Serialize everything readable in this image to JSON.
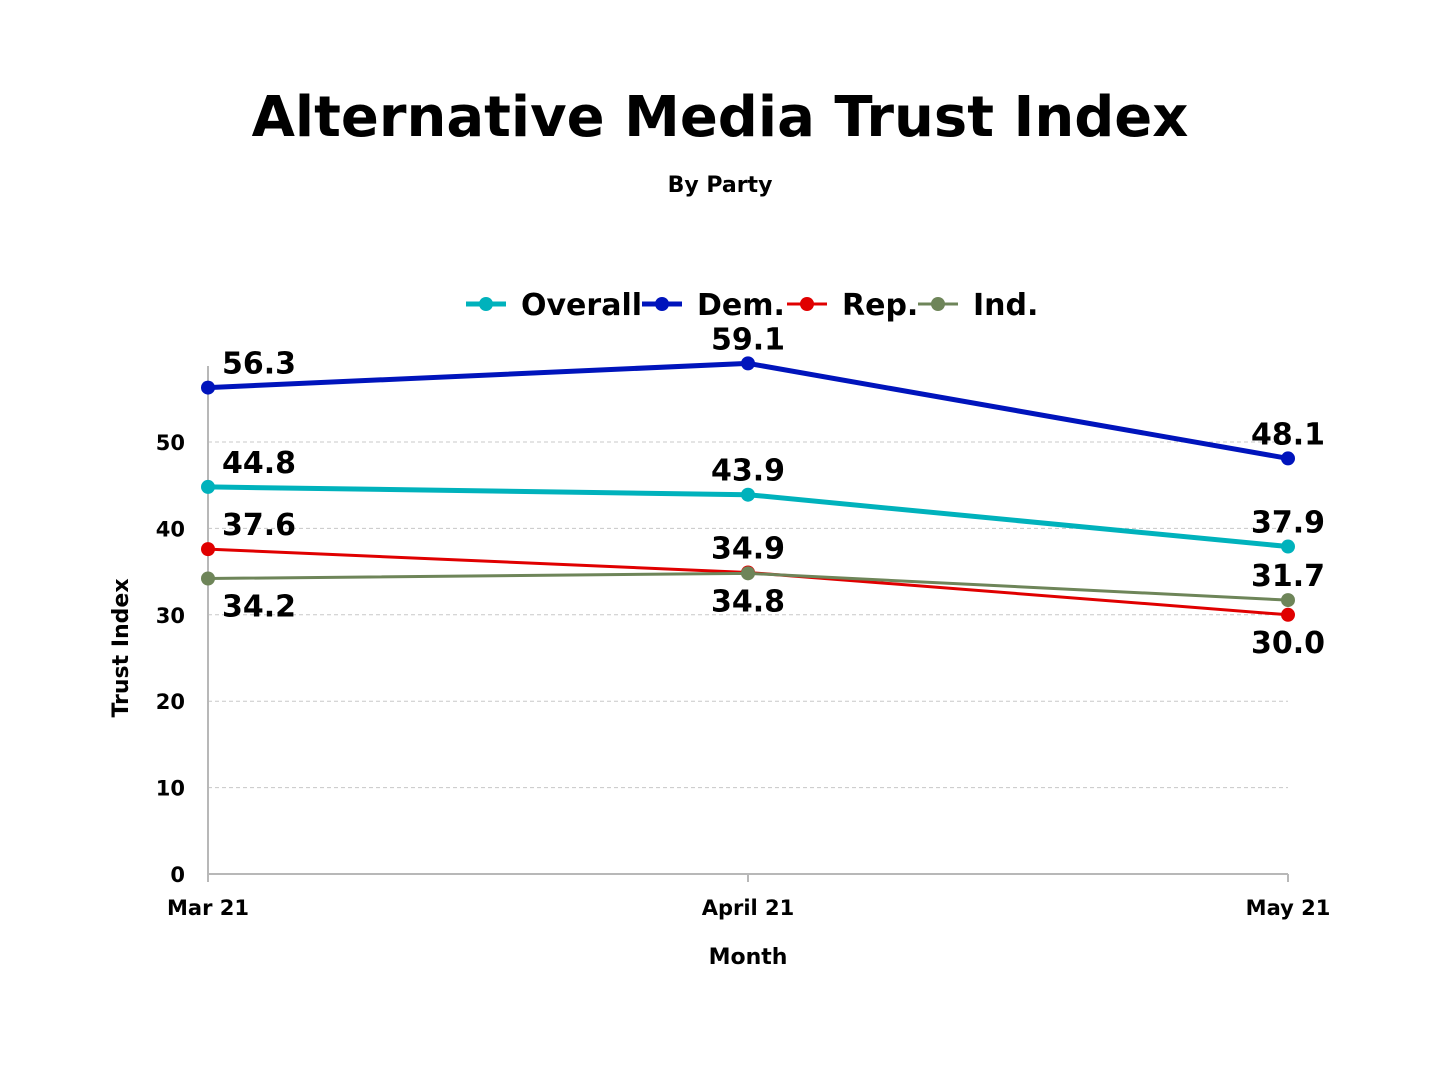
{
  "chart_data": {
    "type": "line",
    "title": "Alternative Media Trust Index",
    "subtitle": "By Party",
    "xlabel": "Month",
    "ylabel": "Trust Index",
    "categories": [
      "Mar 21",
      "April 21",
      "May 21"
    ],
    "yticks": [
      0,
      10,
      20,
      30,
      40,
      50
    ],
    "ylim": [
      0,
      59.1
    ],
    "grid": true,
    "legend_position": "top-center",
    "series": [
      {
        "name": "Overall",
        "color": "#00B2BC",
        "values": [
          44.8,
          43.9,
          37.9
        ],
        "labels": [
          "44.8",
          "43.9",
          "37.9"
        ],
        "label_pos": [
          "above",
          "above",
          "above"
        ],
        "width": 5
      },
      {
        "name": "Dem.",
        "color": "#0014BC",
        "values": [
          56.3,
          59.1,
          48.1
        ],
        "labels": [
          "56.3",
          "59.1",
          "48.1"
        ],
        "label_pos": [
          "above",
          "above",
          "above"
        ],
        "width": 5
      },
      {
        "name": "Rep.",
        "color": "#E00000",
        "values": [
          37.6,
          34.9,
          30.0
        ],
        "labels": [
          "37.6",
          "34.9",
          "30.0"
        ],
        "label_pos": [
          "above",
          "above",
          "below"
        ],
        "width": 3
      },
      {
        "name": "Ind.",
        "color": "#6E8559",
        "values": [
          34.2,
          34.8,
          31.7
        ],
        "labels": [
          "34.2",
          "34.8",
          "31.7"
        ],
        "label_pos": [
          "below",
          "below",
          "above"
        ],
        "width": 3
      }
    ]
  }
}
